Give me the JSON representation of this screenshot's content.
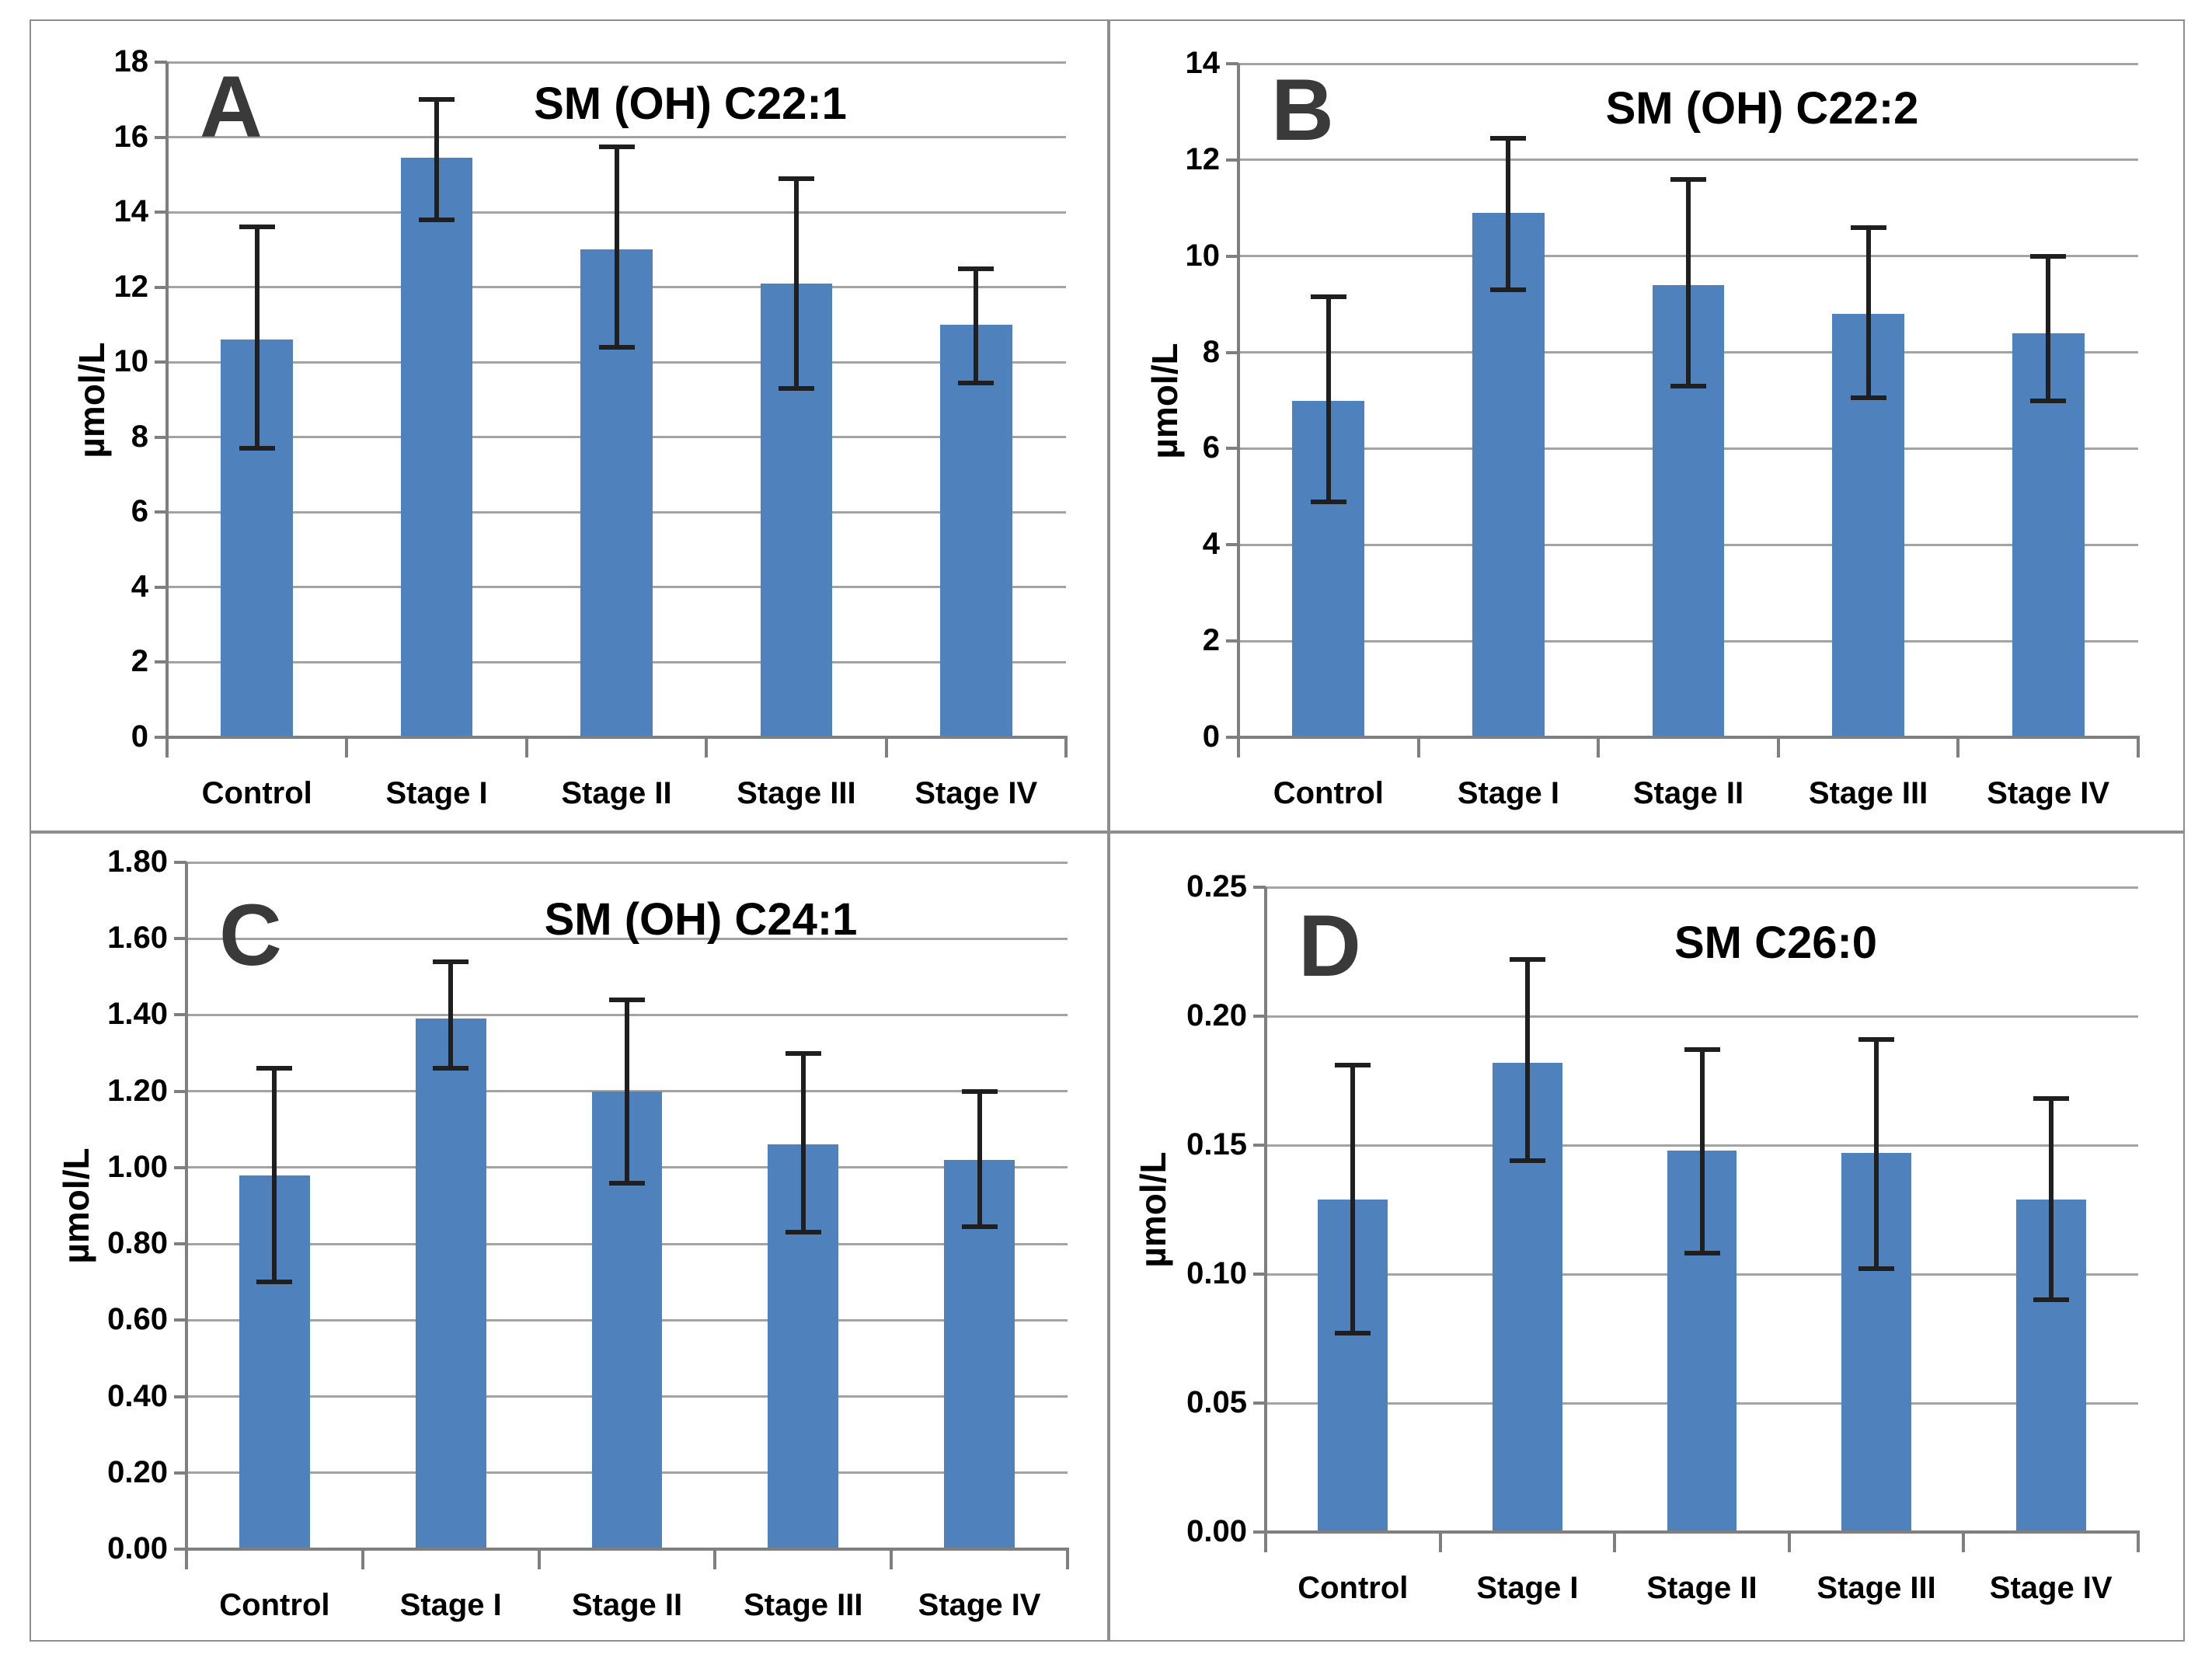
{
  "figure": {
    "background": "#ffffff",
    "description": "Four-panel bar chart figure (A-D) of sphingomyelin species concentrations in Control vs cancer Stage I-IV groups, mean with error bars"
  },
  "colors": {
    "bar_fill": "#4f81bd",
    "gridline": "#a3a3a3",
    "axis": "#7f7f7f",
    "error_bar": "#1f1f1f",
    "panel_border": "#8e8e8e",
    "text": "#000000",
    "panel_letter": "#3a3a3a"
  },
  "chart_data": [
    {
      "panel_label": "A",
      "type": "bar",
      "title": "SM (OH) C22:1",
      "xlabel": "",
      "ylabel": "µmol/L",
      "ylim": [
        0,
        18
      ],
      "tick_step": 2,
      "decimals": 0,
      "grid": true,
      "legend": "none",
      "categories": [
        "Control",
        "Stage I",
        "Stage II",
        "Stage III",
        "Stage IV"
      ],
      "values": [
        10.6,
        15.45,
        13.0,
        12.1,
        11.0
      ],
      "error_low": [
        7.7,
        13.8,
        10.4,
        9.3,
        9.45
      ],
      "error_high": [
        13.6,
        17.0,
        15.75,
        14.9,
        12.5
      ]
    },
    {
      "panel_label": "B",
      "type": "bar",
      "title": "SM (OH) C22:2",
      "xlabel": "",
      "ylabel": "µmol/L",
      "ylim": [
        0,
        14
      ],
      "tick_step": 2,
      "decimals": 0,
      "grid": true,
      "legend": "none",
      "categories": [
        "Control",
        "Stage I",
        "Stage II",
        "Stage III",
        "Stage IV"
      ],
      "values": [
        7.0,
        10.9,
        9.4,
        8.8,
        8.4
      ],
      "error_low": [
        4.9,
        9.3,
        7.3,
        7.05,
        7.0
      ],
      "error_high": [
        9.15,
        12.45,
        11.6,
        10.6,
        10.0
      ]
    },
    {
      "panel_label": "C",
      "type": "bar",
      "title": "SM (OH) C24:1",
      "xlabel": "",
      "ylabel": "µmol/L",
      "ylim": [
        0,
        1.8
      ],
      "tick_step": 0.2,
      "decimals": 2,
      "grid": true,
      "legend": "none",
      "categories": [
        "Control",
        "Stage I",
        "Stage II",
        "Stage III",
        "Stage IV"
      ],
      "values": [
        0.98,
        1.39,
        1.2,
        1.06,
        1.02
      ],
      "error_low": [
        0.7,
        1.26,
        0.96,
        0.83,
        0.845
      ],
      "error_high": [
        1.26,
        1.54,
        1.44,
        1.3,
        1.2
      ]
    },
    {
      "panel_label": "D",
      "type": "bar",
      "title": "SM C26:0",
      "xlabel": "",
      "ylabel": "µmol/L",
      "ylim": [
        0,
        0.25
      ],
      "tick_step": 0.05,
      "decimals": 2,
      "grid": true,
      "legend": "none",
      "categories": [
        "Control",
        "Stage I",
        "Stage II",
        "Stage III",
        "Stage IV"
      ],
      "values": [
        0.129,
        0.182,
        0.148,
        0.147,
        0.129
      ],
      "error_low": [
        0.077,
        0.144,
        0.108,
        0.102,
        0.09
      ],
      "error_high": [
        0.181,
        0.222,
        0.187,
        0.191,
        0.168
      ]
    }
  ]
}
